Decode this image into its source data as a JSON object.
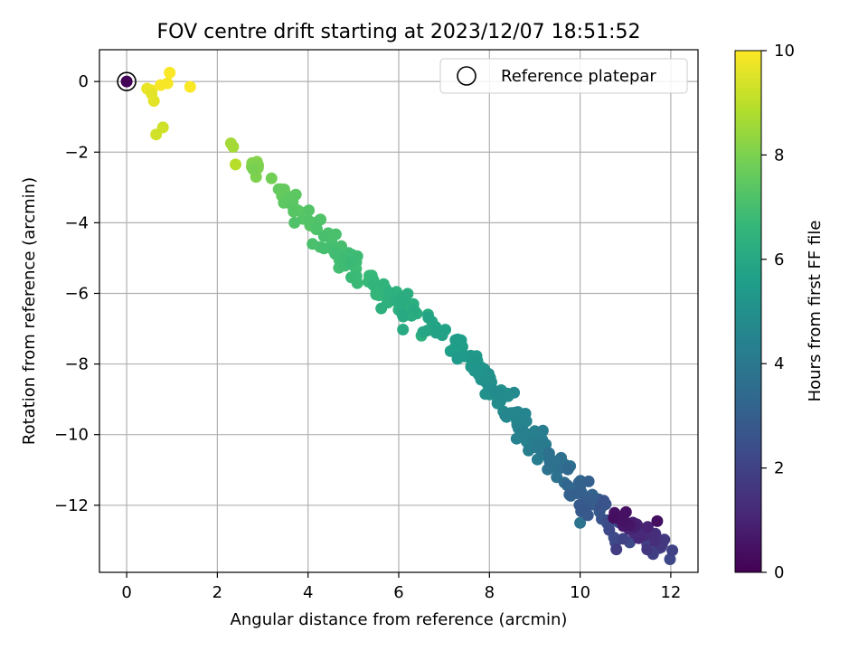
{
  "chart_data": {
    "type": "scatter",
    "title": "FOV centre drift starting at 2023/12/07 18:51:52",
    "xlabel": "Angular distance from reference (arcmin)",
    "ylabel": "Rotation from reference (arcmin)",
    "xlim": [
      -0.6,
      12.6
    ],
    "ylim": [
      -13.9,
      0.9
    ],
    "xticks": [
      0,
      2,
      4,
      6,
      8,
      10,
      12
    ],
    "yticks": [
      0,
      -2,
      -4,
      -6,
      -8,
      -10,
      -12
    ],
    "ytick_labels": [
      "0",
      "−2",
      "−4",
      "−6",
      "−8",
      "−10",
      "−12"
    ],
    "grid": true,
    "legend": {
      "position": "top-right",
      "entries": [
        "Reference platepar"
      ]
    },
    "colorbar": {
      "label": "Hours from first FF file",
      "range": [
        0,
        10
      ],
      "ticks": [
        0,
        2,
        4,
        6,
        8,
        10
      ],
      "colormap": "viridis"
    },
    "colormap_stops": [
      "#440154",
      "#482878",
      "#3e4989",
      "#31688e",
      "#26828e",
      "#1f9e89",
      "#35b779",
      "#6ece58",
      "#b5de2b",
      "#fde725"
    ],
    "reference_point": {
      "x": 0,
      "y": 0,
      "hours": 0.05
    },
    "point_groups": [
      {
        "x0": 10.9,
        "x1": 11.9,
        "y0": -12.35,
        "y1": -13.35,
        "h0": 0.4,
        "h1": 2.2,
        "n": 40,
        "jx": 0.28,
        "jy": 0.22
      },
      {
        "x0": 10.8,
        "x1": 9.0,
        "y0": -12.8,
        "y1": -10.2,
        "h0": 2.2,
        "h1": 4.3,
        "n": 60,
        "jx": 0.25,
        "jy": 0.3
      },
      {
        "x0": 9.0,
        "x1": 7.6,
        "y0": -10.2,
        "y1": -7.8,
        "h0": 4.3,
        "h1": 5.4,
        "n": 60,
        "jx": 0.22,
        "jy": 0.32
      },
      {
        "x0": 7.6,
        "x1": 5.5,
        "y0": -7.8,
        "y1": -5.8,
        "h0": 5.4,
        "h1": 6.6,
        "n": 55,
        "jx": 0.25,
        "jy": 0.3
      },
      {
        "x0": 5.5,
        "x1": 3.5,
        "y0": -5.8,
        "y1": -3.3,
        "h0": 6.6,
        "h1": 7.5,
        "n": 55,
        "jx": 0.22,
        "jy": 0.32
      },
      {
        "x0": 3.5,
        "x1": 2.7,
        "y0": -3.3,
        "y1": -2.2,
        "h0": 7.5,
        "h1": 8.2,
        "n": 15,
        "jx": 0.15,
        "jy": 0.22
      }
    ],
    "fixed_points": [
      {
        "x": 2.3,
        "y": -1.75,
        "h": 8.6
      },
      {
        "x": 2.35,
        "y": -1.85,
        "h": 8.6
      },
      {
        "x": 2.4,
        "y": -2.35,
        "h": 8.9
      },
      {
        "x": 3.7,
        "y": -4.0,
        "h": 7.2
      },
      {
        "x": 4.1,
        "y": -4.6,
        "h": 7.1
      },
      {
        "x": 5.4,
        "y": -5.5,
        "h": 6.8
      },
      {
        "x": 6.5,
        "y": -7.2,
        "h": 6.3
      },
      {
        "x": 9.0,
        "y": -9.9,
        "h": 4.6
      },
      {
        "x": 10.0,
        "y": -12.5,
        "h": 3.8
      },
      {
        "x": 10.8,
        "y": -13.25,
        "h": 1.8
      },
      {
        "x": 10.95,
        "y": -12.95,
        "h": 2.0
      },
      {
        "x": 11.7,
        "y": -12.45,
        "h": 0.4
      },
      {
        "x": 0.55,
        "y": -0.35,
        "h": 9.6
      },
      {
        "x": 0.6,
        "y": -0.55,
        "h": 9.6
      },
      {
        "x": 0.55,
        "y": -0.25,
        "h": 9.8
      },
      {
        "x": 0.75,
        "y": -0.1,
        "h": 9.9
      },
      {
        "x": 0.9,
        "y": -0.05,
        "h": 9.9
      },
      {
        "x": 0.95,
        "y": 0.25,
        "h": 9.95
      },
      {
        "x": 1.4,
        "y": -0.15,
        "h": 9.95
      },
      {
        "x": 0.8,
        "y": -1.3,
        "h": 9.3
      },
      {
        "x": 0.65,
        "y": -1.5,
        "h": 9.3
      },
      {
        "x": 0.45,
        "y": -0.2,
        "h": 9.7
      }
    ]
  }
}
